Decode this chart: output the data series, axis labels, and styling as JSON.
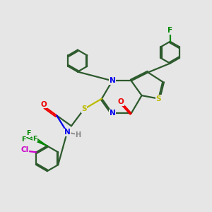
{
  "background_color": "#e6e6e6",
  "atom_colors": {
    "N": "#0000ee",
    "O": "#ee0000",
    "S": "#bbbb00",
    "F": "#008800",
    "Cl": "#cc00cc",
    "C": "#2d5a2d",
    "H": "#888888"
  }
}
